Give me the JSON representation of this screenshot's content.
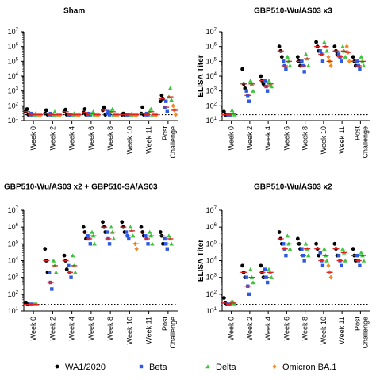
{
  "colors": {
    "WA1/2020": "#000000",
    "Beta": "#2f59e0",
    "Delta": "#3ec43e",
    "Omicron BA.1": "#f08a2a",
    "median": "#e02020",
    "axis": "#000000"
  },
  "legend": [
    {
      "name": "WA1/2020",
      "marker": "circle"
    },
    {
      "name": "Beta",
      "marker": "square"
    },
    {
      "name": "Delta",
      "marker": "triangle"
    },
    {
      "name": "Omicron BA.1",
      "marker": "diamond"
    }
  ],
  "chart_data": [
    {
      "type": "scatter",
      "title": "Sham",
      "ylabel": "",
      "y_scale": "log10",
      "ylim": [
        10,
        10000000
      ],
      "yticks": [
        {
          "label": "10",
          "exp": "1",
          "value": 10
        },
        {
          "label": "10",
          "exp": "2",
          "value": 100
        },
        {
          "label": "10",
          "exp": "3",
          "value": 1000
        },
        {
          "label": "10",
          "exp": "4",
          "value": 10000
        },
        {
          "label": "10",
          "exp": "5",
          "value": 100000
        },
        {
          "label": "10",
          "exp": "6",
          "value": 1000000
        },
        {
          "label": "10",
          "exp": "7",
          "value": 10000000
        }
      ],
      "categories": [
        "Week 0",
        "Week 2",
        "Week 4",
        "Week 6",
        "Week 8",
        "Week 10",
        "Week 11",
        "Post Challenge"
      ],
      "lod": 25,
      "series": [
        {
          "name": "WA1/2020",
          "values": [
            [
              40,
              60,
              25
            ],
            [
              30,
              50,
              25
            ],
            [
              40,
              55,
              25
            ],
            [
              35,
              60,
              25
            ],
            [
              50,
              80,
              25
            ],
            [
              25,
              30,
              25
            ],
            [
              30,
              80,
              25
            ],
            [
              200,
              500,
              300
            ]
          ]
        },
        {
          "name": "Beta",
          "values": [
            [
              25,
              30,
              25
            ],
            [
              25,
              30,
              25
            ],
            [
              25,
              25,
              25
            ],
            [
              25,
              30,
              25
            ],
            [
              30,
              40,
              25
            ],
            [
              25,
              25,
              25
            ],
            [
              25,
              30,
              25
            ],
            [
              80,
              200,
              40
            ]
          ]
        },
        {
          "name": "Delta",
          "values": [
            [
              25,
              30,
              25
            ],
            [
              25,
              40,
              25
            ],
            [
              25,
              30,
              25
            ],
            [
              30,
              40,
              25
            ],
            [
              40,
              60,
              25
            ],
            [
              25,
              30,
              25
            ],
            [
              40,
              60,
              25
            ],
            [
              400,
              1500,
              250
            ]
          ]
        },
        {
          "name": "Omicron BA.1",
          "values": [
            [
              25,
              25,
              25
            ],
            [
              25,
              25,
              25
            ],
            [
              25,
              25,
              25
            ],
            [
              25,
              25,
              25
            ],
            [
              25,
              25,
              25
            ],
            [
              25,
              25,
              25
            ],
            [
              25,
              25,
              25
            ],
            [
              100,
              50,
              25
            ]
          ]
        }
      ]
    },
    {
      "type": "scatter",
      "title": "GBP510-Wu/AS03 x3",
      "ylabel": "ELISA Titer",
      "y_scale": "log10",
      "ylim": [
        10,
        10000000
      ],
      "yticks": [
        {
          "label": "10",
          "exp": "1",
          "value": 10
        },
        {
          "label": "10",
          "exp": "2",
          "value": 100
        },
        {
          "label": "10",
          "exp": "3",
          "value": 1000
        },
        {
          "label": "10",
          "exp": "4",
          "value": 10000
        },
        {
          "label": "10",
          "exp": "5",
          "value": 100000
        },
        {
          "label": "10",
          "exp": "6",
          "value": 1000000
        },
        {
          "label": "10",
          "exp": "7",
          "value": 10000000
        }
      ],
      "categories": [
        "Week 0",
        "Week 2",
        "Week 4",
        "Week 6",
        "Week 8",
        "Week 10",
        "Week 11",
        "Post Challenge"
      ],
      "lod": 25,
      "series": [
        {
          "name": "WA1/2020",
          "values": [
            [
              40,
              25,
              25
            ],
            [
              30000,
              3000,
              1500
            ],
            [
              10000,
              5000,
              3000
            ],
            [
              1000000,
              500000,
              200000
            ],
            [
              200000,
              100000,
              50000
            ],
            [
              2000000,
              1000000,
              500000
            ],
            [
              1000000,
              500000,
              300000
            ],
            [
              200000,
              100000,
              50000
            ]
          ]
        },
        {
          "name": "Beta",
          "values": [
            [
              25,
              25,
              25
            ],
            [
              1000,
              500,
              200
            ],
            [
              5000,
              2000,
              1000
            ],
            [
              100000,
              50000,
              30000
            ],
            [
              100000,
              50000,
              20000
            ],
            [
              500000,
              300000,
              100000
            ],
            [
              300000,
              200000,
              100000
            ],
            [
              100000,
              50000,
              30000
            ]
          ]
        },
        {
          "name": "Delta",
          "values": [
            [
              50,
              30,
              25
            ],
            [
              5000,
              3000,
              1000
            ],
            [
              5000,
              3000,
              2000
            ],
            [
              200000,
              100000,
              50000
            ],
            [
              300000,
              150000,
              50000
            ],
            [
              2000000,
              1000000,
              500000
            ],
            [
              1000000,
              500000,
              200000
            ],
            [
              200000,
              100000,
              50000
            ]
          ]
        },
        {
          "name": "Omicron BA.1",
          "values": [
            [],
            [],
            [],
            [],
            [],
            [
              200000,
              100000,
              50000
            ],
            [
              1000000,
              400000,
              100000
            ],
            []
          ]
        }
      ]
    },
    {
      "type": "scatter",
      "title": "GBP510-Wu/AS03 x2 + GBP510-SA/AS03",
      "ylabel": "",
      "y_scale": "log10",
      "ylim": [
        10,
        10000000
      ],
      "yticks": [
        {
          "label": "10",
          "exp": "1",
          "value": 10
        },
        {
          "label": "10",
          "exp": "2",
          "value": 100
        },
        {
          "label": "10",
          "exp": "3",
          "value": 1000
        },
        {
          "label": "10",
          "exp": "4",
          "value": 10000
        },
        {
          "label": "10",
          "exp": "5",
          "value": 100000
        },
        {
          "label": "10",
          "exp": "6",
          "value": 1000000
        },
        {
          "label": "10",
          "exp": "7",
          "value": 10000000
        }
      ],
      "categories": [
        "Week 0",
        "Week 2",
        "Week 4",
        "Week 6",
        "Week 8",
        "Week 10",
        "Week 11",
        "Post Challenge"
      ],
      "lod": 25,
      "series": [
        {
          "name": "WA1/2020",
          "values": [
            [
              30,
              25,
              25
            ],
            [
              50000,
              10000,
              2000
            ],
            [
              20000,
              10000,
              3000
            ],
            [
              1000000,
              500000,
              200000
            ],
            [
              2000000,
              1000000,
              500000
            ],
            [
              2000000,
              1000000,
              500000
            ],
            [
              1000000,
              500000,
              300000
            ],
            [
              500000,
              300000,
              100000
            ]
          ]
        },
        {
          "name": "Beta",
          "values": [
            [
              25,
              25,
              25
            ],
            [
              2000,
              500,
              200
            ],
            [
              5000,
              2000,
              1000
            ],
            [
              300000,
              200000,
              100000
            ],
            [
              500000,
              200000,
              100000
            ],
            [
              500000,
              300000,
              200000
            ],
            [
              300000,
              200000,
              100000
            ],
            [
              200000,
              100000,
              50000
            ]
          ]
        },
        {
          "name": "Delta",
          "values": [
            [
              25,
              25,
              25
            ],
            [
              10000,
              5000,
              2000
            ],
            [
              20000,
              5000,
              2000
            ],
            [
              500000,
              300000,
              100000
            ],
            [
              1000000,
              500000,
              200000
            ],
            [
              1000000,
              600000,
              300000
            ],
            [
              500000,
              300000,
              100000
            ],
            [
              300000,
              200000,
              100000
            ]
          ]
        },
        {
          "name": "Omicron BA.1",
          "values": [
            [],
            [],
            [],
            [],
            [],
            [
              100000,
              50000
            ],
            [],
            []
          ]
        }
      ]
    },
    {
      "type": "scatter",
      "title": "GBP510-Wu/AS03 x2",
      "ylabel": "ELISA Titer",
      "y_scale": "log10",
      "ylim": [
        10,
        10000000
      ],
      "yticks": [
        {
          "label": "10",
          "exp": "1",
          "value": 10
        },
        {
          "label": "10",
          "exp": "2",
          "value": 100
        },
        {
          "label": "10",
          "exp": "3",
          "value": 1000
        },
        {
          "label": "10",
          "exp": "4",
          "value": 10000
        },
        {
          "label": "10",
          "exp": "5",
          "value": 100000
        },
        {
          "label": "10",
          "exp": "6",
          "value": 1000000
        },
        {
          "label": "10",
          "exp": "7",
          "value": 10000000
        }
      ],
      "categories": [
        "Week 0",
        "Week 2",
        "Week 4",
        "Week 6",
        "Week 8",
        "Week 10",
        "Week 11",
        "Post Challenge"
      ],
      "lod": 25,
      "series": [
        {
          "name": "WA1/2020",
          "values": [
            [
              60,
              30,
              25
            ],
            [
              5000,
              2000,
              1000
            ],
            [
              5000,
              2000,
              1000
            ],
            [
              500000,
              200000,
              100000
            ],
            [
              200000,
              100000,
              50000
            ],
            [
              100000,
              50000,
              20000
            ],
            [
              100000,
              50000,
              20000
            ],
            [
              50000,
              20000,
              10000
            ]
          ]
        },
        {
          "name": "Beta",
          "values": [
            [
              25,
              25,
              25
            ],
            [
              1000,
              300,
              100
            ],
            [
              3000,
              1000,
              500
            ],
            [
              100000,
              50000,
              20000
            ],
            [
              50000,
              20000,
              10000
            ],
            [
              30000,
              10000,
              5000
            ],
            [
              20000,
              10000,
              5000
            ],
            [
              20000,
              10000,
              5000
            ]
          ]
        },
        {
          "name": "Delta",
          "values": [
            [
              40,
              30,
              25
            ],
            [
              3000,
              1000,
              500
            ],
            [
              3000,
              2000,
              1000
            ],
            [
              300000,
              100000,
              50000
            ],
            [
              100000,
              50000,
              20000
            ],
            [
              50000,
              20000,
              10000
            ],
            [
              50000,
              30000,
              10000
            ],
            [
              30000,
              20000,
              10000
            ]
          ]
        },
        {
          "name": "Omicron BA.1",
          "values": [
            [],
            [],
            [],
            [],
            [],
            [
              5000,
              2000,
              1000
            ],
            [],
            []
          ]
        }
      ]
    }
  ]
}
